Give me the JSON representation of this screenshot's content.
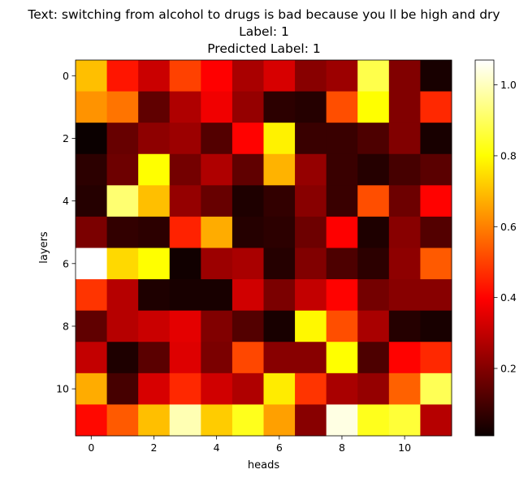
{
  "title": {
    "line1": "Text: switching from alcohol to drugs is bad because you ll be high and dry",
    "line2": "Label: 1",
    "line3": "Predicted Label: 1"
  },
  "chart_data": {
    "type": "heatmap",
    "colormap": "hot",
    "xlabel": "heads",
    "ylabel": "layers",
    "x_ticks": [
      "0",
      "2",
      "4",
      "6",
      "8",
      "10"
    ],
    "y_ticks": [
      "0",
      "2",
      "4",
      "6",
      "8",
      "10"
    ],
    "colorbar": {
      "range": [
        0.01,
        1.07
      ],
      "ticks": [
        "0.2",
        "0.4",
        "0.6",
        "0.8",
        "1.0"
      ],
      "tick_values": [
        0.2,
        0.4,
        0.6,
        0.8,
        1.0
      ]
    },
    "values": [
      [
        0.7,
        0.43,
        0.3,
        0.5,
        0.39,
        0.25,
        0.32,
        0.2,
        0.23,
        0.88,
        0.19,
        0.03
      ],
      [
        0.63,
        0.58,
        0.14,
        0.26,
        0.36,
        0.22,
        0.06,
        0.05,
        0.52,
        0.8,
        0.19,
        0.46
      ],
      [
        0.01,
        0.15,
        0.21,
        0.23,
        0.12,
        0.4,
        0.78,
        0.08,
        0.08,
        0.11,
        0.19,
        0.03
      ],
      [
        0.06,
        0.16,
        0.8,
        0.17,
        0.26,
        0.14,
        0.68,
        0.22,
        0.08,
        0.05,
        0.1,
        0.13
      ],
      [
        0.05,
        0.92,
        0.7,
        0.22,
        0.15,
        0.04,
        0.07,
        0.2,
        0.08,
        0.52,
        0.16,
        0.4
      ],
      [
        0.18,
        0.07,
        0.06,
        0.45,
        0.67,
        0.05,
        0.06,
        0.16,
        0.38,
        0.04,
        0.2,
        0.12
      ],
      [
        1.07,
        0.74,
        0.8,
        0.02,
        0.23,
        0.25,
        0.05,
        0.19,
        0.11,
        0.06,
        0.21,
        0.54
      ],
      [
        0.48,
        0.27,
        0.04,
        0.03,
        0.03,
        0.31,
        0.18,
        0.29,
        0.4,
        0.17,
        0.2,
        0.2
      ],
      [
        0.14,
        0.27,
        0.3,
        0.34,
        0.19,
        0.12,
        0.03,
        0.79,
        0.52,
        0.25,
        0.05,
        0.03
      ],
      [
        0.29,
        0.04,
        0.13,
        0.33,
        0.18,
        0.51,
        0.2,
        0.2,
        0.8,
        0.11,
        0.4,
        0.46
      ],
      [
        0.67,
        0.1,
        0.32,
        0.46,
        0.31,
        0.26,
        0.77,
        0.48,
        0.25,
        0.22,
        0.55,
        0.89
      ],
      [
        0.41,
        0.54,
        0.7,
        0.99,
        0.72,
        0.83,
        0.65,
        0.2,
        1.04,
        0.83,
        0.86,
        0.27
      ]
    ]
  }
}
